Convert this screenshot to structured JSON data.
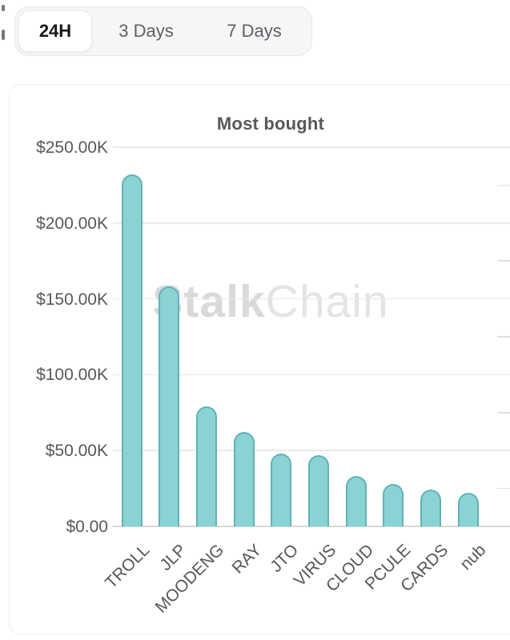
{
  "tabs": {
    "items": [
      {
        "label": "24H",
        "active": true
      },
      {
        "label": "3 Days",
        "active": false
      },
      {
        "label": "7 Days",
        "active": false
      }
    ]
  },
  "watermark": {
    "part1": "Stalk",
    "part2": "Chain"
  },
  "chart_data": {
    "type": "bar",
    "title": "Most bought",
    "categories": [
      "TROLL",
      "JLP",
      "MOODENG",
      "RAY",
      "JTO",
      "VIRUS",
      "CLOUD",
      "PCULE",
      "CARDS",
      "nub"
    ],
    "values": [
      232000,
      158000,
      79000,
      62000,
      48000,
      47000,
      33000,
      28000,
      24000,
      22000
    ],
    "values_display": [
      "$232.00K",
      "$158.00K",
      "$79.00K",
      "$62.00K",
      "$48.00K",
      "$47.00K",
      "$33.00K",
      "$28.00K",
      "$24.00K",
      "$22.00K"
    ],
    "xlabel": "",
    "ylabel": "",
    "y_axis_max": 250000,
    "y_tick_labels": [
      "$250.00K",
      "$200.00K",
      "$150.00K",
      "$100.00K",
      "$50.00K",
      "$0.00"
    ],
    "grid": "horizontal",
    "legend": "none",
    "bar_color": "#8bd2d4",
    "bar_border_color": "#5fb3b6",
    "gridline_color": "#eaeaea",
    "watermark_text": "StalkChain"
  }
}
